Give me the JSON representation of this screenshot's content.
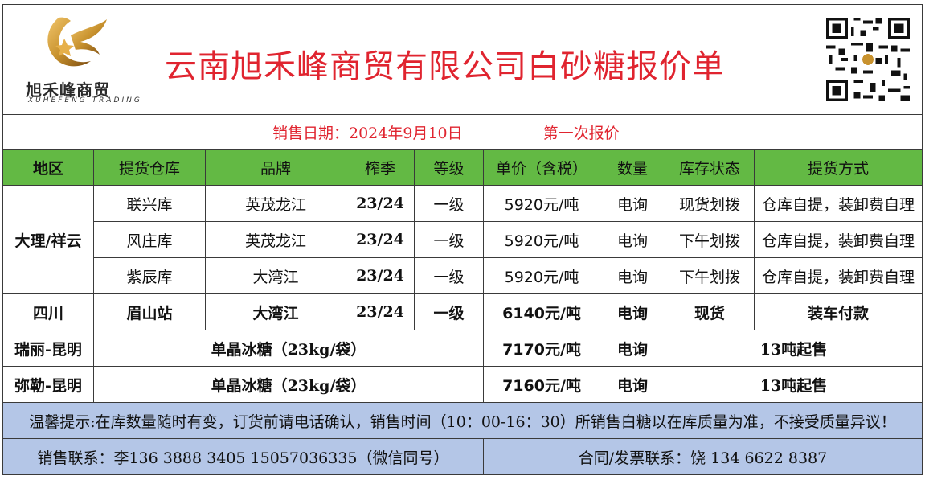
{
  "header": {
    "title": "云南旭禾峰商贸有限公司白砂糖报价单",
    "logo_cn": "旭禾峰商贸",
    "logo_en": "XUHEFENG TRADING"
  },
  "dateline": {
    "sale_date": "销售日期：2024年9月10日",
    "quote_round": "第一次报价"
  },
  "columns": [
    "地区",
    "提货仓库",
    "品牌",
    "榨季",
    "等级",
    "单价（含税）",
    "数量",
    "库存状态",
    "提货方式"
  ],
  "rows": [
    {
      "region": "大理/祥云",
      "warehouse": "联兴库",
      "brand": "英茂龙江",
      "season": "23/24",
      "grade": "一级",
      "price": "5920元/吨",
      "qty": "电询",
      "stock": "现货划拨",
      "delivery": "仓库自提，装卸费自理"
    },
    {
      "warehouse": "风庄库",
      "brand": "英茂龙江",
      "season": "23/24",
      "grade": "一级",
      "price": "5920元/吨",
      "qty": "电询",
      "stock": "下午划拨",
      "delivery": "仓库自提，装卸费自理"
    },
    {
      "warehouse": "紫辰库",
      "brand": "大湾江",
      "season": "23/24",
      "grade": "一级",
      "price": "5920元/吨",
      "qty": "电询",
      "stock": "下午划拨",
      "delivery": "仓库自提，装卸费自理"
    },
    {
      "region": "四川",
      "warehouse": "眉山站",
      "brand": "大湾江",
      "season": "23/24",
      "grade": "一级",
      "price": "6140元/吨",
      "qty": "电询",
      "stock": "现货",
      "delivery": "装车付款"
    }
  ],
  "rock_sugar": [
    {
      "region": "瑞丽-昆明",
      "product": "单晶冰糖（23kg/袋）",
      "price": "7170元/吨",
      "qty": "电询",
      "terms": "13吨起售"
    },
    {
      "region": "弥勒-昆明",
      "product": "单晶冰糖（23kg/袋）",
      "price": "7160元/吨",
      "qty": "电询",
      "terms": "13吨起售"
    }
  ],
  "note": "温馨提示:在库数量随时有变，订货前请电话确认，销售时间（10：00-16：30）所销售白糖以在库质量为准，不接受质量异议！",
  "contact": {
    "sales": "销售联系：李136  3888  3405      15057036335（微信同号）",
    "contract": "合同/发票联系：饶  134  6622  8387"
  },
  "colors": {
    "title": "#e0242f",
    "header_bg": "#63b944",
    "footer_bg": "#b4c6e7",
    "logo_gold": "#c8922e"
  },
  "icons": [
    "logo-emblem",
    "qr-code"
  ]
}
